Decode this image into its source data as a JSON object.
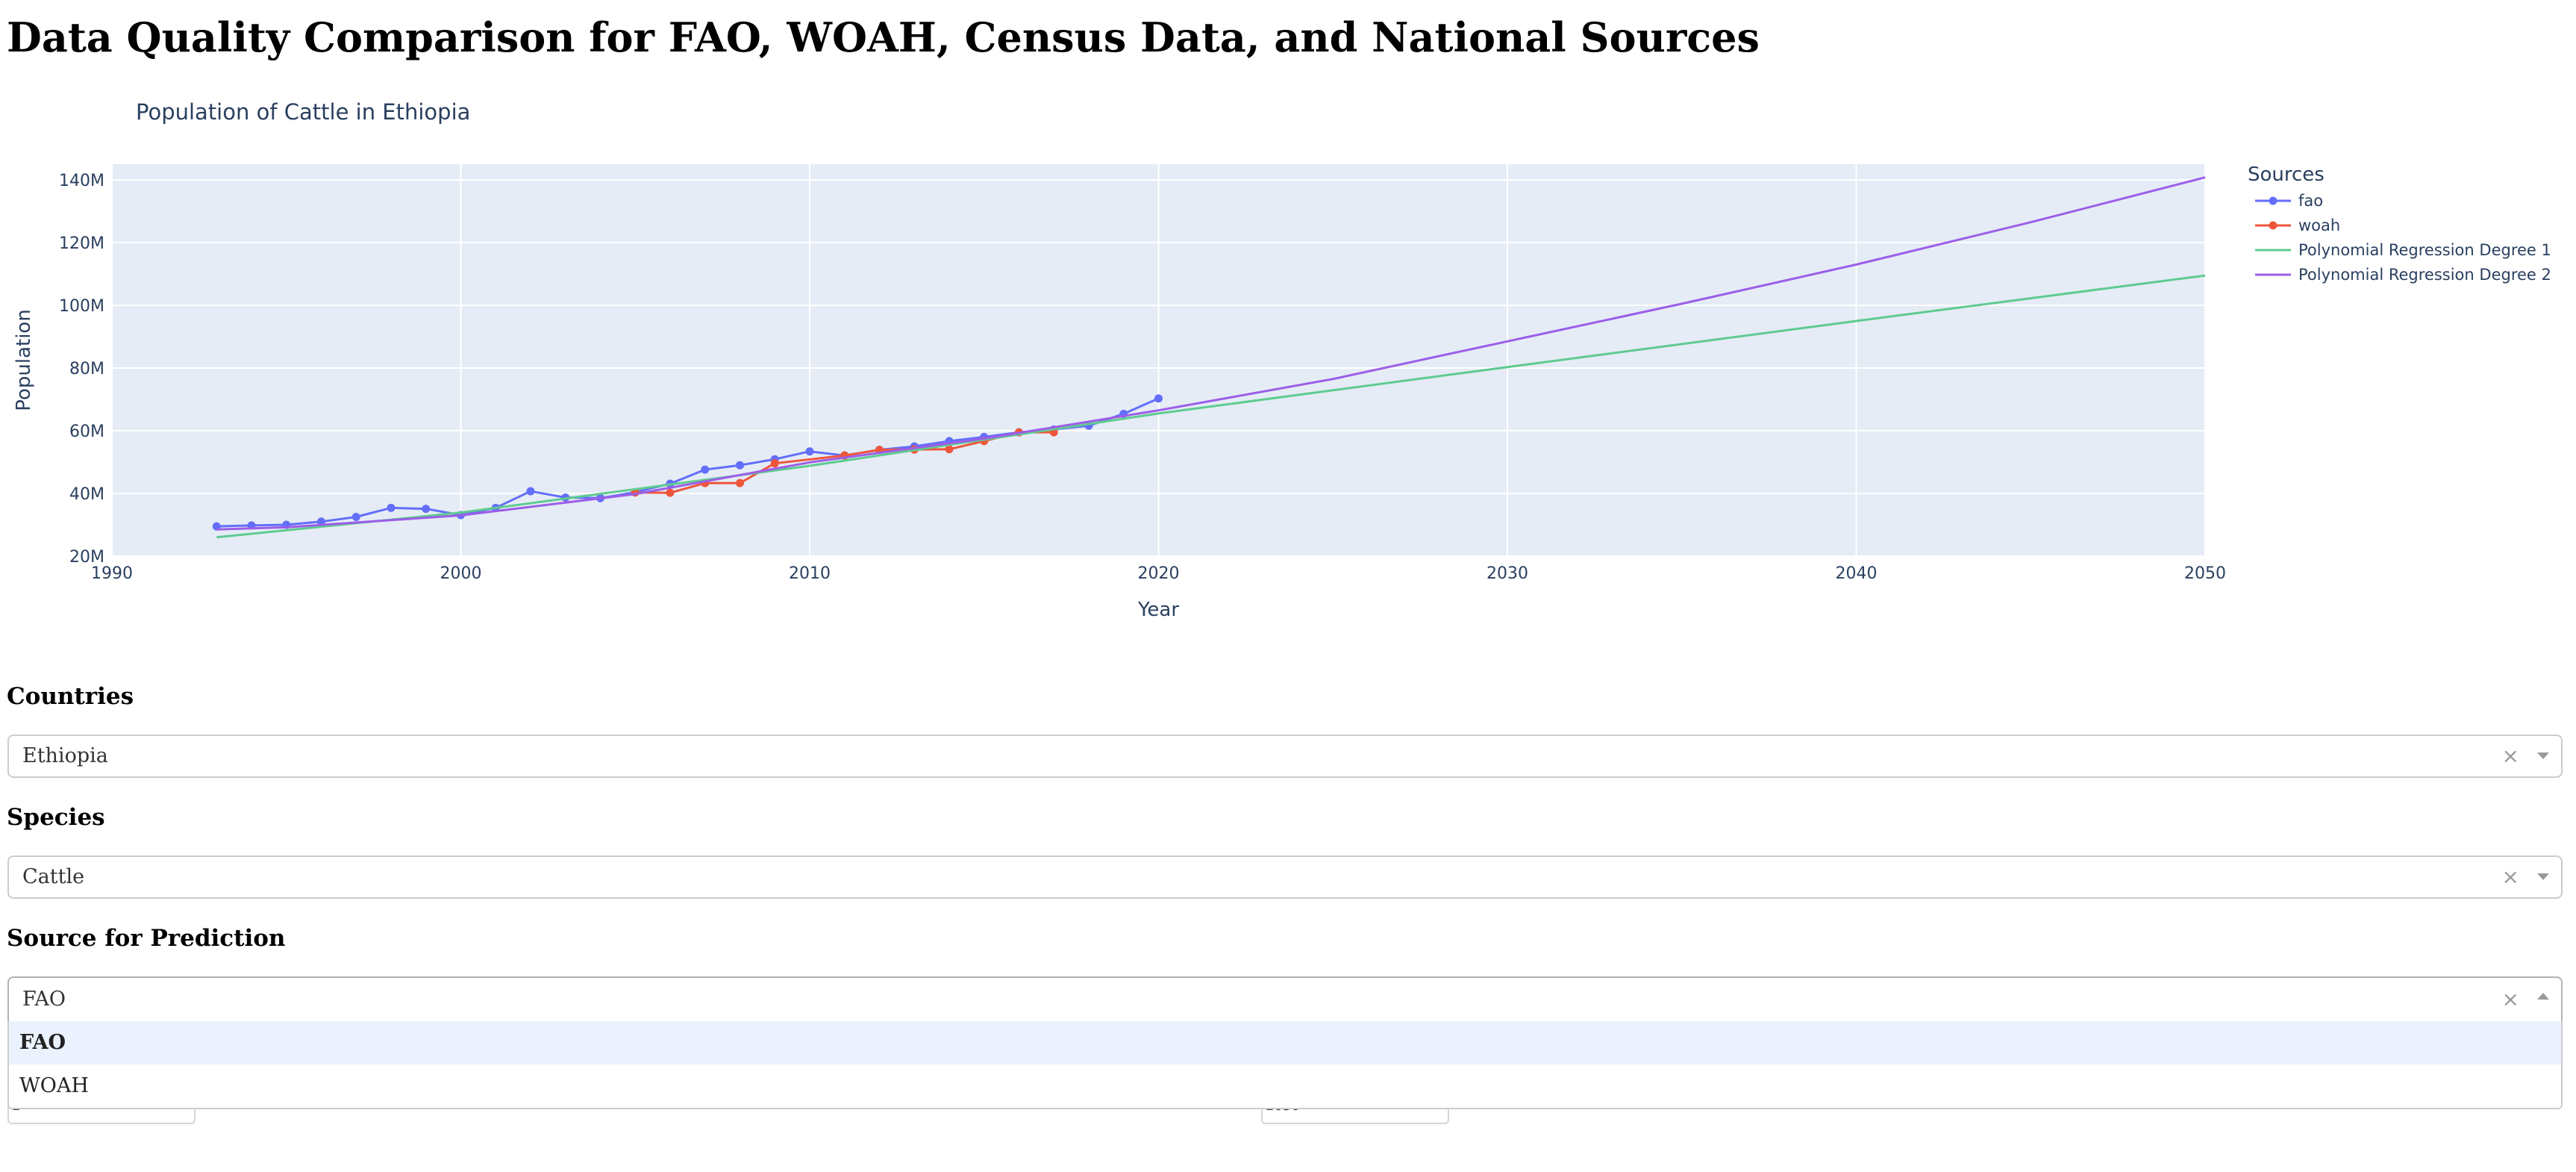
{
  "page": {
    "title": "Data Quality Comparison for FAO, WOAH, Census Data, and National Sources"
  },
  "colors": {
    "fao": "#636efa",
    "woah": "#ef553b",
    "poly1": "#5fcb8f",
    "poly2": "#9c5ee8",
    "plot_bg": "#e5ecf6",
    "axis_text": "#2a3f5f"
  },
  "chart_data": {
    "type": "line",
    "title": "Population of Cattle in Ethiopia",
    "xlabel": "Year",
    "ylabel": "Population",
    "xlim": [
      1990,
      2050
    ],
    "ylim": [
      20000000,
      145000000
    ],
    "x_ticks": [
      1990,
      2000,
      2010,
      2020,
      2030,
      2040,
      2050
    ],
    "y_ticks": [
      20000000,
      40000000,
      60000000,
      80000000,
      100000000,
      120000000,
      140000000
    ],
    "y_tick_labels": [
      "20M",
      "40M",
      "60M",
      "80M",
      "100M",
      "120M",
      "140M"
    ],
    "grid": true,
    "legend_title": "Sources",
    "legend_position": "right",
    "series": [
      {
        "name": "fao",
        "color": "#636efa",
        "mode": "lines+markers",
        "x": [
          1993,
          1994,
          1995,
          1996,
          1997,
          1998,
          1999,
          2000,
          2001,
          2002,
          2003,
          2004,
          2005,
          2006,
          2007,
          2008,
          2009,
          2010,
          2011,
          2012,
          2013,
          2014,
          2015,
          2016,
          2017,
          2018,
          2019,
          2020
        ],
        "y": [
          29500000,
          29800000,
          30000000,
          31000000,
          32500000,
          35400000,
          35100000,
          33100000,
          35400000,
          40700000,
          38700000,
          38500000,
          40400000,
          43100000,
          47600000,
          49000000,
          50900000,
          53400000,
          52100000,
          53900000,
          55000000,
          56700000,
          58000000,
          59500000,
          60400000,
          61600000,
          65400000,
          70300000
        ]
      },
      {
        "name": "woah",
        "color": "#ef553b",
        "mode": "lines+markers",
        "x": [
          2005,
          2006,
          2007,
          2008,
          2009,
          2011,
          2012,
          2013,
          2014,
          2015,
          2016,
          2017
        ],
        "y": [
          40300000,
          40200000,
          43300000,
          43300000,
          49600000,
          52100000,
          53900000,
          54000000,
          54100000,
          56700000,
          59500000,
          59500000
        ]
      },
      {
        "name": "Polynomial Regression Degree 1",
        "color": "#5fcb8f",
        "mode": "lines",
        "x": [
          1993,
          2000,
          2010,
          2020,
          2030,
          2040,
          2050
        ],
        "y": [
          26000000,
          33900000,
          48800000,
          65500000,
          80300000,
          95000000,
          109500000
        ]
      },
      {
        "name": "Polynomial Regression Degree 2",
        "color": "#9c5ee8",
        "mode": "lines",
        "x": [
          1993,
          1995,
          2000,
          2005,
          2010,
          2015,
          2020,
          2025,
          2030,
          2035,
          2040,
          2045,
          2050
        ],
        "y": [
          28500000,
          29200000,
          33000000,
          39800000,
          49900000,
          57500000,
          66500000,
          76500000,
          88500000,
          100500000,
          113000000,
          126500000,
          140800000
        ]
      }
    ]
  },
  "filters": {
    "countries_label": "Countries",
    "countries_value": "Ethiopia",
    "species_label": "Species",
    "species_value": "Cattle",
    "source_label": "Source for Prediction",
    "source_value": "FAO",
    "clear_glyph": "×",
    "source_options": [
      "FAO",
      "WOAH"
    ],
    "hidden_input_left_value": "2",
    "hidden_input_right_value": "2050"
  }
}
